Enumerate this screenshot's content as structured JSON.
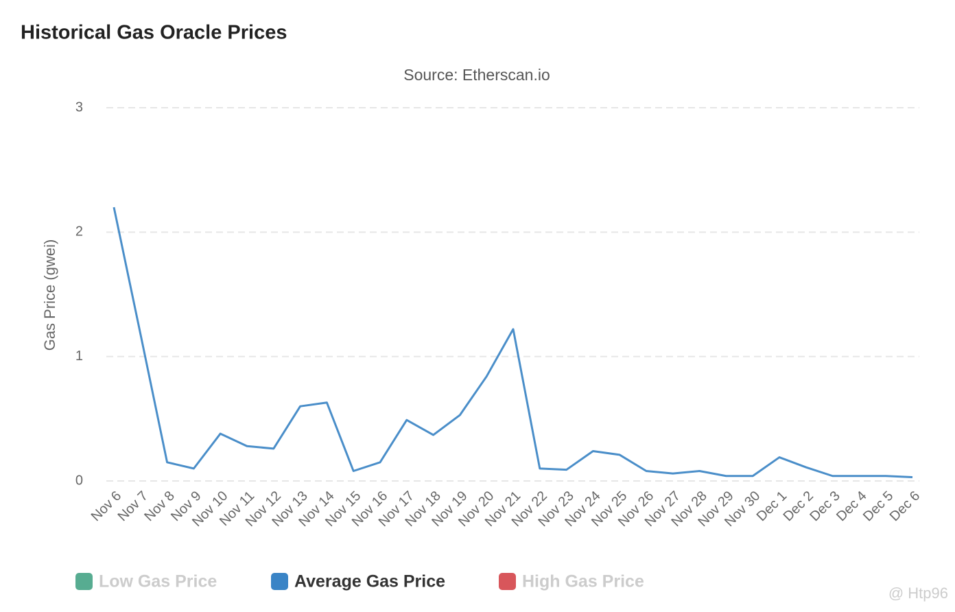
{
  "chart_data": {
    "type": "line",
    "title": "Historical Gas Oracle Prices",
    "subtitle": "Source: Etherscan.io",
    "y_axis_label": "Gas Price (gwei)",
    "categories": [
      "Nov 6",
      "Nov 7",
      "Nov 8",
      "Nov 9",
      "Nov 10",
      "Nov 11",
      "Nov 12",
      "Nov 13",
      "Nov 14",
      "Nov 15",
      "Nov 16",
      "Nov 17",
      "Nov 18",
      "Nov 19",
      "Nov 20",
      "Nov 21",
      "Nov 22",
      "Nov 23",
      "Nov 24",
      "Nov 25",
      "Nov 26",
      "Nov 27",
      "Nov 28",
      "Nov 29",
      "Nov 30",
      "Dec 1",
      "Dec 2",
      "Dec 3",
      "Dec 4",
      "Dec 5",
      "Dec 6"
    ],
    "series": [
      {
        "name": "Average Gas Price",
        "color": "#4a8ec9",
        "values": [
          2.2,
          1.18,
          0.15,
          0.1,
          0.38,
          0.28,
          0.26,
          0.6,
          0.63,
          0.08,
          0.15,
          0.49,
          0.37,
          0.53,
          0.84,
          1.22,
          0.1,
          0.09,
          0.24,
          0.21,
          0.08,
          0.06,
          0.08,
          0.04,
          0.04,
          0.19,
          0.11,
          0.04,
          0.04,
          0.04,
          0.03
        ]
      }
    ],
    "legend": [
      {
        "name": "Low Gas Price",
        "color": "#3a9e7e",
        "active": false
      },
      {
        "name": "Average Gas Price",
        "color": "#3a84c6",
        "active": true
      },
      {
        "name": "High Gas Price",
        "color": "#d1383e",
        "active": false
      }
    ],
    "ylim": [
      0,
      3
    ],
    "yticks": [
      0,
      1,
      2,
      3
    ],
    "grid": true,
    "watermark": "@ Htp96"
  }
}
